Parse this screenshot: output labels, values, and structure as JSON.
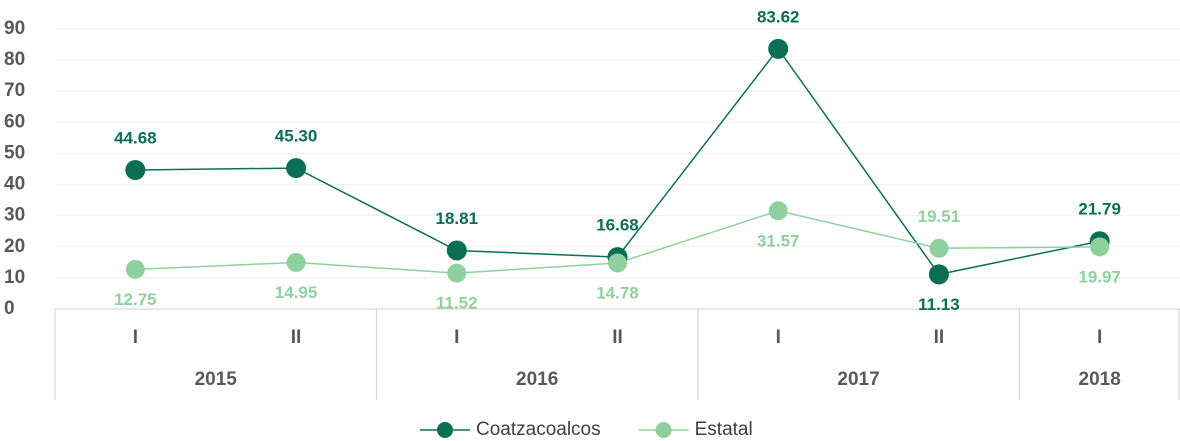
{
  "chart_data": {
    "type": "line",
    "categories": [
      "I",
      "II",
      "I",
      "II",
      "I",
      "II",
      "I"
    ],
    "years": [
      "2015",
      "2015",
      "2016",
      "2016",
      "2017",
      "2017",
      "2018"
    ],
    "series": [
      {
        "name": "Coatzacoalcos",
        "color": "#0b6e55",
        "values": [
          44.68,
          45.3,
          18.81,
          16.68,
          83.62,
          11.13,
          21.79
        ],
        "value_labels": [
          "44.68",
          "45.30",
          "18.81",
          "16.68",
          "83.62",
          "11.13",
          "21.79"
        ]
      },
      {
        "name": "Estatal",
        "color": "#8fd19e",
        "values": [
          12.75,
          14.95,
          11.52,
          14.78,
          31.57,
          19.51,
          19.97
        ],
        "value_labels": [
          "12.75",
          "14.95",
          "11.52",
          "14.78",
          "31.57",
          "19.51",
          "19.97"
        ]
      }
    ],
    "ylim": [
      0,
      90
    ],
    "yticks": [
      0,
      10,
      20,
      30,
      40,
      50,
      60,
      70,
      80,
      90
    ],
    "grid": true
  }
}
